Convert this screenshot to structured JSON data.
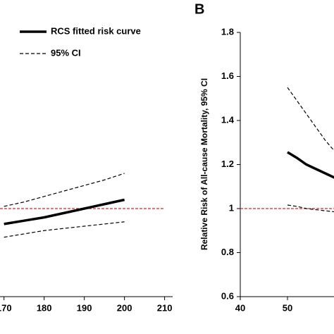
{
  "chart_data": [
    {
      "type": "line",
      "x": [
        170,
        175,
        180,
        185,
        190,
        195,
        200
      ],
      "series": [
        {
          "name": "RCS fitted risk curve",
          "color": "#000000",
          "values": [
            0.93,
            0.945,
            0.96,
            0.98,
            1.0,
            1.02,
            1.04
          ]
        },
        {
          "name": "95% CI",
          "color": "#000000",
          "upper": [
            1.01,
            1.03,
            1.055,
            1.08,
            1.105,
            1.13,
            1.16
          ],
          "lower": [
            0.87,
            0.885,
            0.9,
            0.91,
            0.92,
            0.93,
            0.94
          ]
        }
      ],
      "reference_line": {
        "value": 1,
        "color": "#d62728"
      },
      "xlim": [
        169,
        212
      ],
      "xticks": [
        170,
        180,
        190,
        200,
        210
      ],
      "ylim": [
        0.6,
        1.8
      ]
    },
    {
      "type": "line",
      "title": "B",
      "y_label": "Relative Risk of All-cause Mortality, 95% CI",
      "x": [
        50,
        52,
        54,
        56,
        58,
        60
      ],
      "series": [
        {
          "color": "#000000",
          "values": [
            1.256,
            1.23,
            1.2,
            1.18,
            1.16,
            1.14
          ]
        },
        {
          "color": "#000000",
          "upper": [
            1.55,
            1.49,
            1.43,
            1.37,
            1.31,
            1.26
          ],
          "lower": [
            1.016,
            1.01,
            1.0,
            0.995,
            0.99,
            0.985
          ]
        }
      ],
      "reference_line": {
        "value": 1,
        "color": "#d62728"
      },
      "xlim": [
        40,
        60
      ],
      "xticks": [
        40,
        50
      ],
      "ylim": [
        0.6,
        1.8
      ],
      "yticks": [
        0.6,
        0.8,
        1,
        1.2,
        1.4,
        1.6,
        1.8
      ]
    }
  ]
}
